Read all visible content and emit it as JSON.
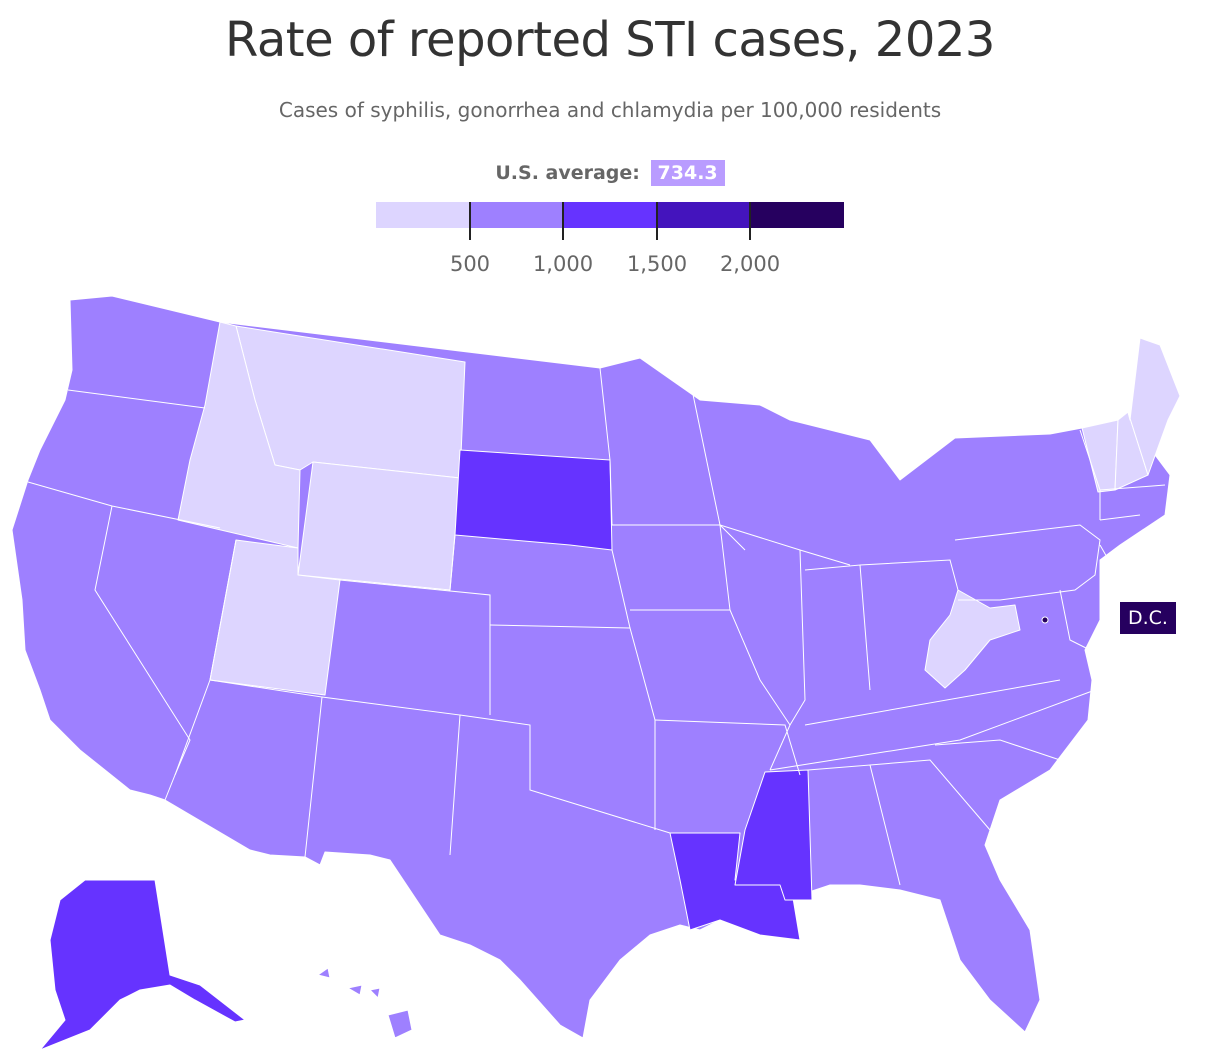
{
  "title": "Rate of reported STI cases, 2023",
  "subtitle": "Cases of syphilis, gonorrhea and chlamydia per 100,000 residents",
  "legend": {
    "average_label": "U.S. average:",
    "average_value": "734.3",
    "ticks": [
      "500",
      "1,000",
      "1,500",
      "2,000"
    ],
    "bins": [
      {
        "color": "#ddd5ff"
      },
      {
        "color": "#9e80ff"
      },
      {
        "color": "#6633ff"
      },
      {
        "color": "#4414bd"
      },
      {
        "color": "#26005f"
      }
    ]
  },
  "map": {
    "colors": {
      "lowest": "#ddd5ff",
      "low": "#9e80ff",
      "mid": "#6633ff",
      "dark": "#26005f"
    },
    "callout": "D.C.",
    "states": [
      {
        "name": "Montana",
        "bin": "lowest"
      },
      {
        "name": "Idaho",
        "bin": "lowest"
      },
      {
        "name": "Wyoming",
        "bin": "lowest"
      },
      {
        "name": "Utah",
        "bin": "lowest"
      },
      {
        "name": "West Virginia",
        "bin": "lowest"
      },
      {
        "name": "Vermont",
        "bin": "lowest"
      },
      {
        "name": "New Hampshire",
        "bin": "lowest"
      },
      {
        "name": "Maine",
        "bin": "lowest"
      },
      {
        "name": "South Dakota",
        "bin": "mid"
      },
      {
        "name": "Louisiana",
        "bin": "mid"
      },
      {
        "name": "Mississippi",
        "bin": "mid"
      },
      {
        "name": "Alaska",
        "bin": "mid"
      },
      {
        "name": "District of Columbia",
        "bin": "dark"
      }
    ]
  }
}
